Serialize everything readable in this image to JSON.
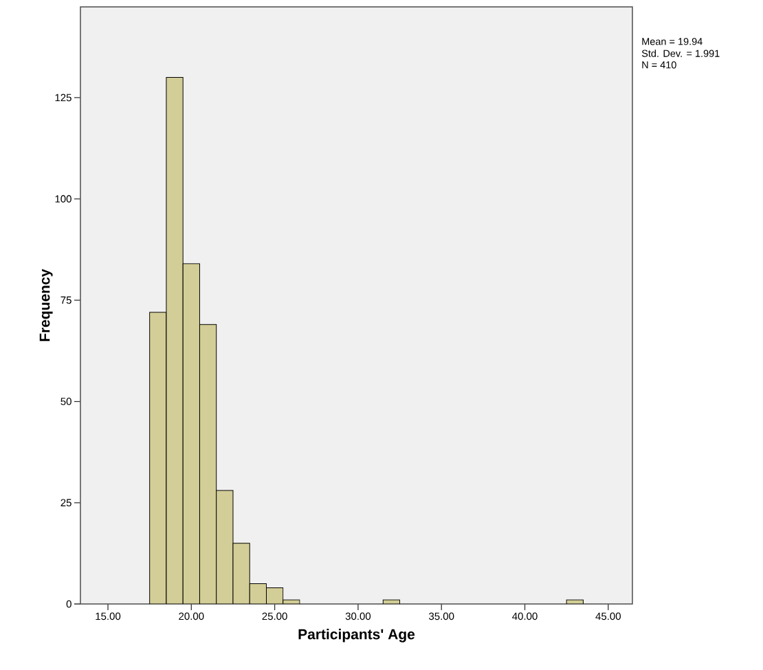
{
  "chart_data": {
    "type": "histogram",
    "xlabel": "Participants' Age",
    "ylabel": "Frequency",
    "bins": [
      17.5,
      18.5,
      19.5,
      20.5,
      21.5,
      22.5,
      23.5,
      24.5,
      25.5,
      26.5,
      27.5,
      28.5,
      29.5,
      30.5,
      31.5,
      32.5,
      33.5,
      34.5,
      35.5,
      36.5,
      37.5,
      38.5,
      39.5,
      40.5,
      41.5,
      42.5,
      43.5
    ],
    "values": [
      72,
      130,
      84,
      69,
      28,
      15,
      5,
      4,
      1,
      0,
      0,
      0,
      0,
      0,
      1,
      0,
      0,
      0,
      0,
      0,
      0,
      0,
      0,
      0,
      0,
      1
    ],
    "color": "#d3ce97",
    "xlim": [
      13.35,
      46.45
    ],
    "ylim": [
      0,
      147.4
    ],
    "xticks": [
      {
        "value": 15,
        "label": "15.00"
      },
      {
        "value": 20,
        "label": "20.00"
      },
      {
        "value": 25,
        "label": "25.00"
      },
      {
        "value": 30,
        "label": "30.00"
      },
      {
        "value": 35,
        "label": "35.00"
      },
      {
        "value": 40,
        "label": "40.00"
      },
      {
        "value": 45,
        "label": "45.00"
      }
    ],
    "yticks": [
      0,
      25,
      50,
      75,
      100,
      125
    ],
    "grid": false,
    "annotations": [
      "Mean = 19.94",
      "Std. Dev. = 1.991",
      "N = 410"
    ]
  }
}
